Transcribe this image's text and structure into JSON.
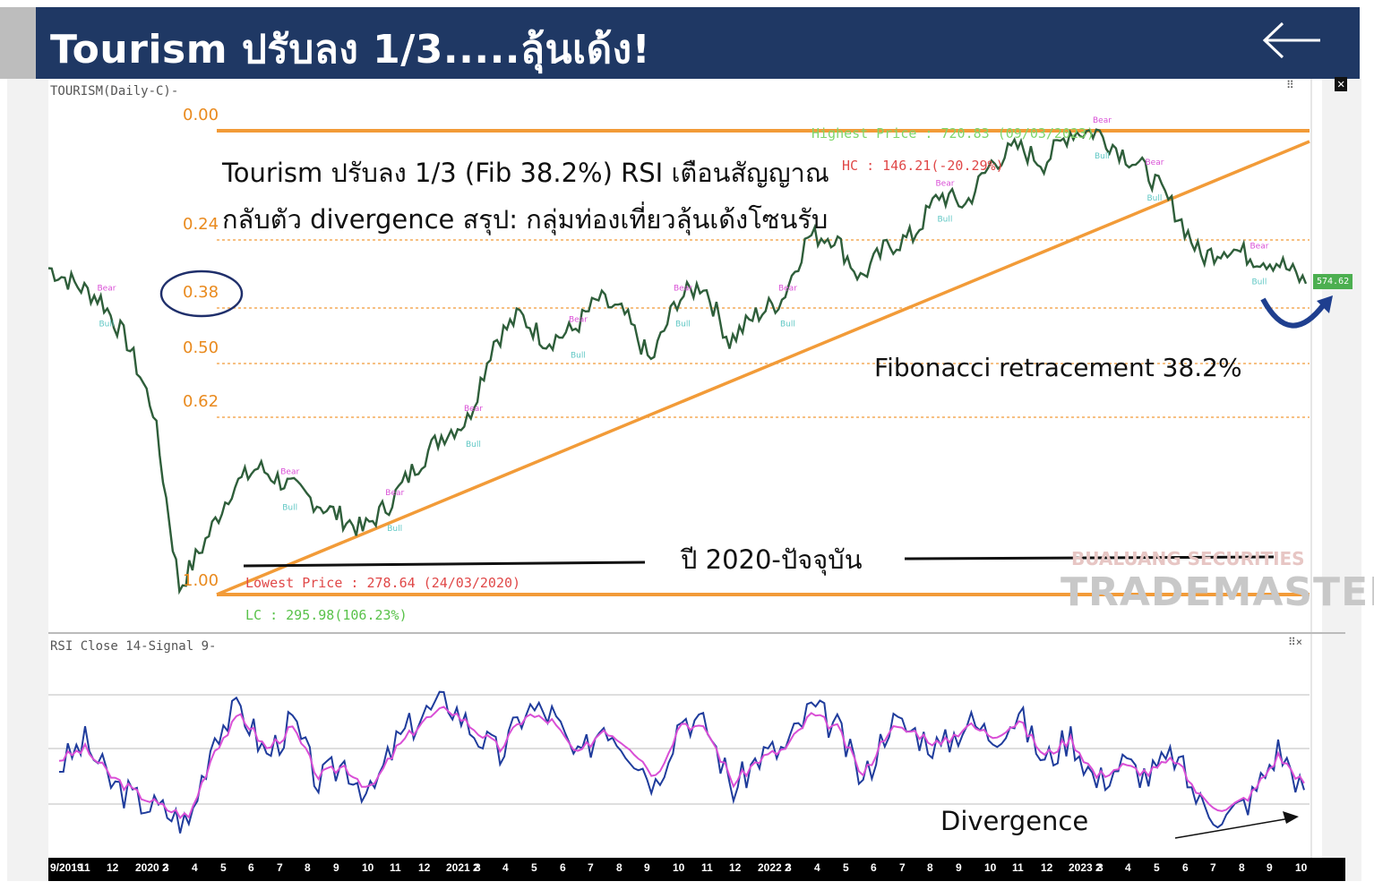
{
  "header": {
    "title": "Tourism ปรับลง 1/3.....ลุ้นเด้ง!",
    "back_icon": "arrow-left-icon",
    "bg_color": "#1f3864"
  },
  "price_panel": {
    "caption": "TOURISM(Daily-C)-",
    "annotation_line1": "Tourism ปรับลง 1/3 (Fib 38.2%) RSI เตือนสัญญาณ",
    "annotation_line2": "กลับตัว divergence สรุป: กลุ่มท่องเที่ยวลุ้นเด้งโซนรับ",
    "fib_note": "Fibonacci retracement 38.2%",
    "period_note": "ปี 2020-ปัจจุบัน",
    "highest_price": "Highest Price : 720.83 (09/03/2023)",
    "hc_text": "HC : 146.21(-20.29%)",
    "lowest_price": "Lowest Price : 278.64 (24/03/2020)",
    "lc_text": "LC : 295.98(106.23%)",
    "last_price_tag": "574.62",
    "watermark_top": "BUALUANG SECURITIES",
    "watermark_main": "TRADEMASTER",
    "bear_label": "Bear",
    "bull_label": "Bull"
  },
  "rsi_panel": {
    "caption": "RSI Close 14-Signal 9-",
    "divergence_note": "Divergence"
  },
  "chart_data": [
    {
      "type": "line",
      "title": "TOURISM(Daily-C)",
      "series": [
        {
          "name": "TOURISM",
          "x": [
            "2019-09",
            "2019-11",
            "2019-12",
            "2020-01",
            "2020-02",
            "2020-03",
            "2020-04",
            "2020-05",
            "2020-06",
            "2020-07",
            "2020-08",
            "2020-09",
            "2020-10",
            "2020-11",
            "2020-12",
            "2021-01",
            "2021-02",
            "2021-03",
            "2021-04",
            "2021-05",
            "2021-06",
            "2021-07",
            "2021-08",
            "2021-09",
            "2021-10",
            "2021-11",
            "2021-12",
            "2022-01",
            "2022-02",
            "2022-03",
            "2022-04",
            "2022-05",
            "2022-06",
            "2022-07",
            "2022-08",
            "2022-09",
            "2022-10",
            "2022-11",
            "2022-12",
            "2023-01",
            "2023-02",
            "2023-03",
            "2023-04",
            "2023-05",
            "2023-06",
            "2023-07",
            "2023-08",
            "2023-09",
            "2023-10"
          ],
          "values": [
            590,
            575,
            560,
            520,
            455,
            285,
            330,
            380,
            400,
            385,
            370,
            355,
            340,
            365,
            400,
            430,
            445,
            520,
            545,
            520,
            530,
            560,
            545,
            500,
            560,
            575,
            520,
            545,
            560,
            620,
            620,
            580,
            610,
            620,
            660,
            650,
            690,
            705,
            690,
            720,
            720,
            700,
            680,
            645,
            600,
            610,
            600,
            595,
            575
          ]
        }
      ],
      "fibonacci_levels": [
        {
          "ratio": "0.00",
          "price": 720.83
        },
        {
          "ratio": "0.24"
        },
        {
          "ratio": "0.38"
        },
        {
          "ratio": "0.50"
        },
        {
          "ratio": "0.62"
        },
        {
          "ratio": "1.00",
          "price": 278.64
        }
      ],
      "colors": {
        "price_line": "#2e5e3a",
        "fib_line": "#f29b38",
        "trend_line": "#f29b38",
        "bear_marker": "#d94fd6",
        "bull_marker": "#5fc7c4"
      }
    },
    {
      "type": "line",
      "title": "RSI Close 14-Signal 9",
      "x_ticks": [
        "9/2019",
        "11",
        "12",
        "2020 2",
        "3",
        "4",
        "5",
        "6",
        "7",
        "8",
        "9",
        "10",
        "11",
        "12",
        "2021 2",
        "3",
        "4",
        "5",
        "6",
        "7",
        "8",
        "9",
        "10",
        "11",
        "12",
        "2022 2",
        "3",
        "4",
        "5",
        "6",
        "7",
        "8",
        "9",
        "10",
        "11",
        "12",
        "2023 2",
        "3",
        "4",
        "5",
        "6",
        "7",
        "8",
        "9",
        "10"
      ],
      "series": [
        {
          "name": "RSI",
          "values": [
            45,
            52,
            40,
            35,
            32,
            28,
            55,
            62,
            48,
            58,
            40,
            46,
            36,
            52,
            60,
            64,
            55,
            48,
            62,
            60,
            46,
            58,
            50,
            40,
            60,
            56,
            38,
            48,
            50,
            62,
            56,
            40,
            58,
            55,
            50,
            58,
            54,
            60,
            46,
            54,
            40,
            46,
            42,
            48,
            34,
            30,
            36,
            50,
            38
          ]
        },
        {
          "name": "Signal",
          "values": [
            47,
            50,
            42,
            37,
            33,
            30,
            50,
            60,
            50,
            56,
            42,
            45,
            38,
            50,
            58,
            62,
            56,
            50,
            60,
            58,
            48,
            56,
            51,
            42,
            58,
            55,
            40,
            47,
            50,
            60,
            56,
            42,
            56,
            55,
            51,
            57,
            54,
            58,
            48,
            53,
            42,
            45,
            43,
            47,
            36,
            32,
            37,
            48,
            40
          ]
        }
      ],
      "colors": {
        "rsi": "#1f3c9c",
        "signal": "#d94fd6"
      }
    }
  ]
}
